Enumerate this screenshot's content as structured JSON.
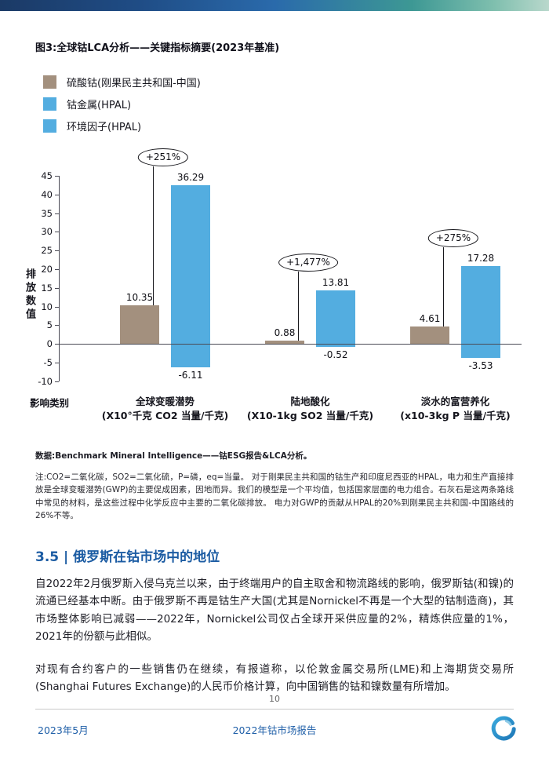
{
  "figure": {
    "title": "图3:全球钴LCA分析——关键指标摘要(2023年基准)"
  },
  "chart_data": {
    "type": "bar",
    "title": "图3:全球钴LCA分析——关键指标摘要(2023年基准)",
    "ylabel": "排放数值",
    "xlabel": "影响类别",
    "ylim": [
      -10,
      45
    ],
    "yticks": [
      45,
      40,
      35,
      30,
      25,
      20,
      15,
      10,
      5,
      0,
      -5,
      -10
    ],
    "grid": false,
    "legend_position": "top-left",
    "categories": [
      {
        "name": "全球变暖潜势",
        "unit": "(X10°千克 CO2 当量/千克)"
      },
      {
        "name": "陆地酸化",
        "unit": "(X10-1kg SO2 当量/千克)"
      },
      {
        "name": "淡水的富营养化",
        "unit": "(x10-3kg P 当量/千克)"
      }
    ],
    "series": [
      {
        "name": "硫酸钴(刚果民主共和国-中国)",
        "color": "#a3907e",
        "values": [
          10.35,
          0.88,
          4.61
        ]
      },
      {
        "name": "钴金属(HPAL)",
        "color": "#53ade0",
        "values": [
          36.29,
          13.81,
          17.28
        ]
      },
      {
        "name": "环境因子(HPAL)",
        "color": "#53ade0",
        "values": [
          -6.11,
          -0.52,
          -3.53
        ]
      }
    ],
    "annotations": [
      "+251%",
      "+1,477%",
      "+275%"
    ]
  },
  "notes": {
    "source": "数据:Benchmark Mineral Intelligence——钴ESG报告&LCA分析。",
    "note": "注:CO2=二氧化碳，SO2=二氧化硫，P=磷，eq=当量。 对于刚果民主共和国的钴生产和印度尼西亚的HPAL，电力和生产直接排放是全球变暖潜势(GWP)的主要促成因素，因地而异。我们的模型是一个平均值，包括国家层面的电力组合。石灰石是这两条路线中常见的材料，是这些过程中化学反应中主要的二氧化碳排放。 电力对GWP的贡献从HPAL的20%到刚果民主共和国-中国路线的26%不等。"
  },
  "section": {
    "heading": "3.5 | 俄罗斯在钴市场中的地位",
    "paragraphs": [
      "自2022年2月俄罗斯入侵乌克兰以来，由于终端用户的自主取舍和物流路线的影响，俄罗斯钴(和镍)的流通已经基本中断。由于俄罗斯不再是钴生产大国(尤其是Nornickel不再是一个大型的钴制造商)，其市场整体影响已减弱——2022年，Nornickel公司仅占全球开采供应量的2%，精炼供应量的1%，2021年的份额与此相似。",
      "对现有合约客户的一些销售仍在继续，有报道称，以伦敦金属交易所(LME)和上海期货交易所(Shanghai Futures Exchange)的人民币价格计算，向中国销售的钴和镍数量有所增加。"
    ]
  },
  "footer": {
    "page_number": "10",
    "left": "2023年5月",
    "center": "2022年钴市场报告",
    "logo": "cobalt-report-logo"
  }
}
